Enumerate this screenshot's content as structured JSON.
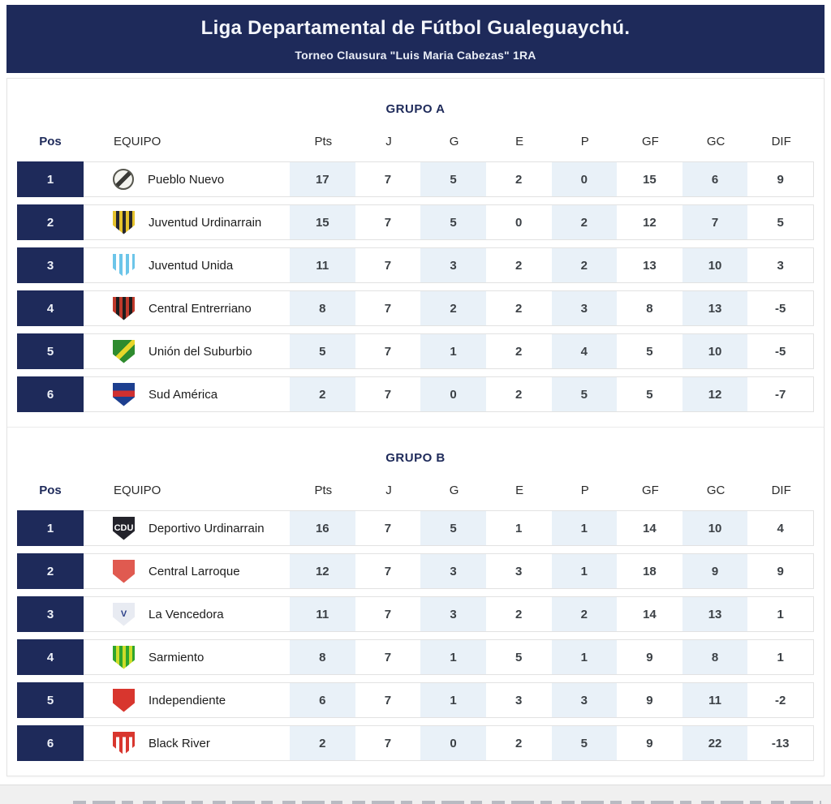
{
  "header": {
    "title": "Liga Departamental de Fútbol Gualeguaychú.",
    "subtitle": "Torneo Clausura \"Luis Maria Cabezas\" 1RA"
  },
  "columns": {
    "pos": "Pos",
    "team": "EQUIPO",
    "stats": [
      "Pts",
      "J",
      "G",
      "E",
      "P",
      "GF",
      "GC",
      "DIF"
    ]
  },
  "colors": {
    "navy": "#1e2a5a",
    "band": "#e9f1f8",
    "row_border": "#e2e2e2"
  },
  "groups": [
    {
      "name": "GRUPO A",
      "rows": [
        {
          "pos": 1,
          "team": "Pueblo Nuevo",
          "logo": {
            "name": "pueblo-nuevo-logo",
            "shape": "circle",
            "type": "diagonal",
            "colors": [
              "#f3f3ee",
              "#3a3a36"
            ]
          },
          "stats": [
            17,
            7,
            5,
            2,
            0,
            15,
            6,
            9
          ]
        },
        {
          "pos": 2,
          "team": "Juventud Urdinarrain",
          "logo": {
            "name": "juventud-urdinarrain-logo",
            "shape": "shield",
            "type": "stripes-v",
            "colors": [
              "#e5c22b",
              "#26262e"
            ]
          },
          "stats": [
            15,
            7,
            5,
            0,
            2,
            12,
            7,
            5
          ]
        },
        {
          "pos": 3,
          "team": "Juventud Unida",
          "logo": {
            "name": "juventud-unida-logo",
            "shape": "shield",
            "type": "stripes-v",
            "colors": [
              "#6cc5e9",
              "#ffffff"
            ]
          },
          "stats": [
            11,
            7,
            3,
            2,
            2,
            13,
            10,
            3
          ]
        },
        {
          "pos": 4,
          "team": "Central Entrerriano",
          "logo": {
            "name": "central-entrerriano-logo",
            "shape": "shield",
            "type": "stripes-v",
            "colors": [
              "#c0392b",
              "#1d1d1d"
            ]
          },
          "stats": [
            8,
            7,
            2,
            2,
            3,
            8,
            13,
            -5
          ]
        },
        {
          "pos": 5,
          "team": "Unión del Suburbio",
          "logo": {
            "name": "union-del-suburbio-logo",
            "shape": "shield",
            "type": "diagonal",
            "colors": [
              "#2e8b2e",
              "#e8d62a"
            ]
          },
          "stats": [
            5,
            7,
            1,
            2,
            4,
            5,
            10,
            -5
          ]
        },
        {
          "pos": 6,
          "team": "Sud América",
          "logo": {
            "name": "sud-america-logo",
            "shape": "shield",
            "type": "band-h",
            "colors": [
              "#1d3f8f",
              "#d03030"
            ]
          },
          "stats": [
            2,
            7,
            0,
            2,
            5,
            5,
            12,
            -7
          ]
        }
      ]
    },
    {
      "name": "GRUPO B",
      "rows": [
        {
          "pos": 1,
          "team": "Deportivo Urdinarrain",
          "logo": {
            "name": "deportivo-urdinarrain-logo",
            "shape": "shield",
            "type": "solid",
            "colors": [
              "#23232b"
            ],
            "text": "CDU",
            "textColor": "#ffffff"
          },
          "stats": [
            16,
            7,
            5,
            1,
            1,
            14,
            10,
            4
          ]
        },
        {
          "pos": 2,
          "team": "Central Larroque",
          "logo": {
            "name": "central-larroque-logo",
            "shape": "shield",
            "type": "solid",
            "colors": [
              "#e05a50"
            ]
          },
          "stats": [
            12,
            7,
            3,
            3,
            1,
            18,
            9,
            9
          ]
        },
        {
          "pos": 3,
          "team": "La Vencedora",
          "logo": {
            "name": "la-vencedora-logo",
            "shape": "shield",
            "type": "solid",
            "colors": [
              "#e8ebf2"
            ],
            "text": "V",
            "textColor": "#2b3f88"
          },
          "stats": [
            11,
            7,
            3,
            2,
            2,
            14,
            13,
            1
          ]
        },
        {
          "pos": 4,
          "team": "Sarmiento",
          "logo": {
            "name": "sarmiento-logo",
            "shape": "shield",
            "type": "stripes-v",
            "colors": [
              "#2ea52e",
              "#cddc2a"
            ]
          },
          "stats": [
            8,
            7,
            1,
            5,
            1,
            9,
            8,
            1
          ]
        },
        {
          "pos": 5,
          "team": "Independiente",
          "logo": {
            "name": "independiente-logo",
            "shape": "shield",
            "type": "solid",
            "colors": [
              "#d8362e"
            ]
          },
          "stats": [
            6,
            7,
            1,
            3,
            3,
            9,
            11,
            -2
          ]
        },
        {
          "pos": 6,
          "team": "Black River",
          "logo": {
            "name": "black-river-logo",
            "shape": "shield",
            "type": "stripes-v",
            "colors": [
              "#d8362e",
              "#ffffff"
            ],
            "top": "#d8362e"
          },
          "stats": [
            2,
            7,
            0,
            2,
            5,
            9,
            22,
            -13
          ]
        }
      ]
    }
  ]
}
